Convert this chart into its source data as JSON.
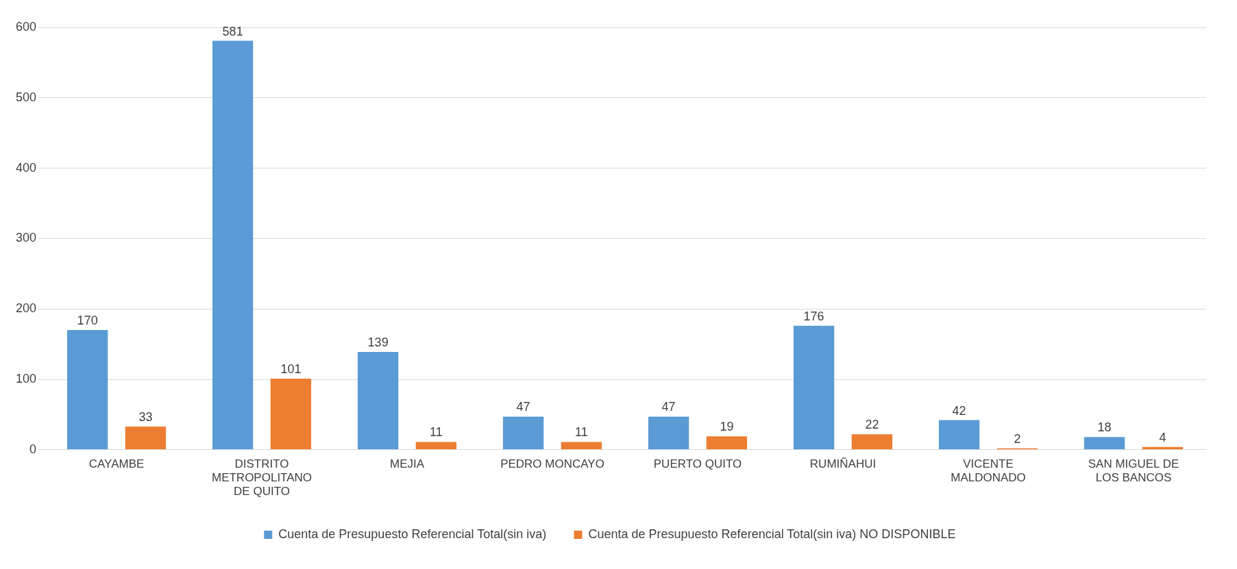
{
  "chart_data": {
    "type": "bar",
    "categories": [
      "CAYAMBE",
      "DISTRITO METROPOLITANO DE QUITO",
      "MEJIA",
      "PEDRO MONCAYO",
      "PUERTO QUITO",
      "RUMIÑAHUI",
      "VICENTE MALDONADO",
      "SAN MIGUEL DE LOS BANCOS"
    ],
    "series": [
      {
        "name": "Cuenta de Presupuesto Referencial Total(sin iva)",
        "color": "#5b9bd5",
        "values": [
          170,
          581,
          139,
          47,
          47,
          176,
          42,
          18
        ]
      },
      {
        "name": "Cuenta de Presupuesto Referencial Total(sin iva) NO DISPONIBLE",
        "color": "#ed7d31",
        "values": [
          33,
          101,
          11,
          11,
          19,
          22,
          2,
          4
        ]
      }
    ],
    "ylim": [
      0,
      600
    ],
    "yticks": [
      0,
      100,
      200,
      300,
      400,
      500,
      600
    ],
    "grid": "y",
    "legend": "bottom",
    "data_labels": true
  }
}
